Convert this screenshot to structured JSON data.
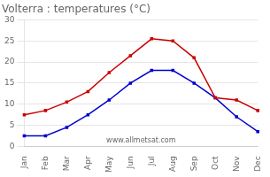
{
  "chart_data": {
    "type": "line",
    "title": "Volterra : temperatures (°C)",
    "categories": [
      "Jan",
      "Feb",
      "Mar",
      "Apr",
      "May",
      "Jun",
      "Jul",
      "Aug",
      "Sep",
      "Oct",
      "Nov",
      "Dec"
    ],
    "series": [
      {
        "color": "#cc0000",
        "values": [
          7.5,
          8.5,
          10.5,
          13.0,
          17.5,
          21.5,
          25.5,
          25.0,
          21.0,
          11.5,
          11.0,
          8.5
        ]
      },
      {
        "color": "#0000cc",
        "values": [
          2.5,
          2.5,
          4.5,
          7.5,
          11.0,
          15.0,
          18.0,
          18.0,
          15.0,
          11.5,
          7.0,
          3.5
        ]
      }
    ],
    "ylim": [
      0,
      30
    ],
    "yticks": [
      0,
      5,
      10,
      15,
      20,
      25,
      30
    ],
    "grid": true,
    "marker": "square",
    "annotations": [
      "www.allmetsat.com"
    ]
  }
}
